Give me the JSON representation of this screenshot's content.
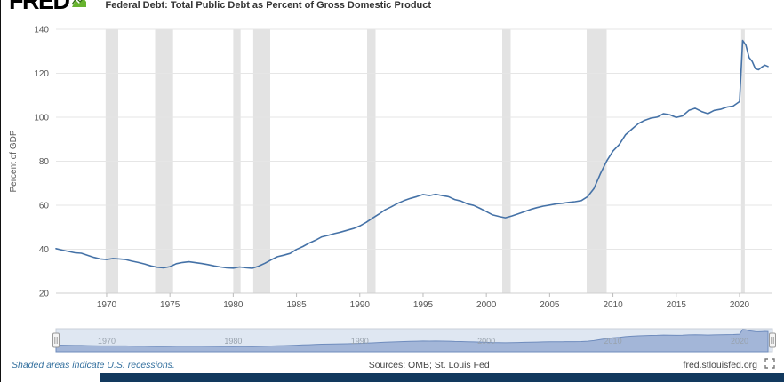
{
  "header": {
    "logo": "FRED",
    "title": "Federal Debt: Total Public Debt as Percent of Gross Domestic Product"
  },
  "footer": {
    "recession_note": "Shaded areas indicate U.S. recessions.",
    "sources": "Sources: OMB; St. Louis Fed",
    "site": "fred.stlouisfed.org"
  },
  "colors": {
    "line": "#4572a7",
    "recession": "#e3e3e3",
    "navigator_bg": "#dfe7f2",
    "navigator_fill": "#8fa6cf",
    "navigator_stroke": "#6f8cbd",
    "logo_green": "#67b32e",
    "bottom_bar": "#12395e"
  },
  "chart_data": {
    "type": "line",
    "title": "Federal Debt: Total Public Debt as Percent of Gross Domestic Product",
    "xlabel": "",
    "ylabel": "Percent of GDP",
    "ylim": [
      20,
      140
    ],
    "yticks": [
      20,
      40,
      60,
      80,
      100,
      120,
      140
    ],
    "xlim": [
      1966,
      2022.6
    ],
    "xticks": [
      1970,
      1975,
      1980,
      1985,
      1990,
      1995,
      2000,
      2005,
      2010,
      2015,
      2020
    ],
    "grid": "horizontal",
    "legend": "none",
    "navigator_ylim": [
      0,
      140
    ],
    "navigator_labels": [
      1970,
      1980,
      1990,
      2000,
      2010,
      2020
    ],
    "recessions": [
      [
        1969.92,
        1970.92
      ],
      [
        1973.83,
        1975.25
      ],
      [
        1980.0,
        1980.58
      ],
      [
        1981.58,
        1982.92
      ],
      [
        1990.58,
        1991.25
      ],
      [
        2001.25,
        2001.92
      ],
      [
        2007.92,
        2009.5
      ],
      [
        2020.13,
        2020.42
      ]
    ],
    "series": [
      {
        "name": "Federal Debt: Total Public Debt as Percent of Gross Domestic Product",
        "units": "Percent of GDP",
        "points": [
          [
            1966,
            40.3
          ],
          [
            1966.5,
            39.6
          ],
          [
            1967,
            39.0
          ],
          [
            1967.5,
            38.4
          ],
          [
            1968,
            38.2
          ],
          [
            1968.5,
            37.2
          ],
          [
            1969,
            36.3
          ],
          [
            1969.5,
            35.6
          ],
          [
            1970,
            35.3
          ],
          [
            1970.5,
            35.8
          ],
          [
            1971,
            35.6
          ],
          [
            1971.5,
            35.3
          ],
          [
            1972,
            34.6
          ],
          [
            1972.5,
            34.0
          ],
          [
            1973,
            33.3
          ],
          [
            1973.5,
            32.4
          ],
          [
            1974,
            31.8
          ],
          [
            1974.5,
            31.5
          ],
          [
            1975,
            32.1
          ],
          [
            1975.5,
            33.4
          ],
          [
            1976,
            34.0
          ],
          [
            1976.5,
            34.3
          ],
          [
            1977,
            33.9
          ],
          [
            1977.5,
            33.5
          ],
          [
            1978,
            33.0
          ],
          [
            1978.5,
            32.4
          ],
          [
            1979,
            31.9
          ],
          [
            1979.5,
            31.5
          ],
          [
            1980,
            31.4
          ],
          [
            1980.5,
            31.9
          ],
          [
            1981,
            31.6
          ],
          [
            1981.5,
            31.3
          ],
          [
            1982,
            32.3
          ],
          [
            1982.5,
            33.6
          ],
          [
            1983,
            35.2
          ],
          [
            1983.5,
            36.6
          ],
          [
            1984,
            37.3
          ],
          [
            1984.5,
            38.1
          ],
          [
            1985,
            39.9
          ],
          [
            1985.5,
            41.2
          ],
          [
            1986,
            42.8
          ],
          [
            1986.5,
            44.1
          ],
          [
            1987,
            45.6
          ],
          [
            1987.5,
            46.3
          ],
          [
            1988,
            47.1
          ],
          [
            1988.5,
            47.8
          ],
          [
            1989,
            48.6
          ],
          [
            1989.5,
            49.4
          ],
          [
            1990,
            50.6
          ],
          [
            1990.5,
            52.2
          ],
          [
            1991,
            54.1
          ],
          [
            1991.5,
            55.9
          ],
          [
            1992,
            57.9
          ],
          [
            1992.5,
            59.3
          ],
          [
            1993,
            60.9
          ],
          [
            1993.5,
            62.1
          ],
          [
            1994,
            63.1
          ],
          [
            1994.5,
            63.9
          ],
          [
            1995,
            64.9
          ],
          [
            1995.5,
            64.4
          ],
          [
            1996,
            65.0
          ],
          [
            1996.5,
            64.4
          ],
          [
            1997,
            63.9
          ],
          [
            1997.5,
            62.6
          ],
          [
            1998,
            61.9
          ],
          [
            1998.5,
            60.6
          ],
          [
            1999,
            59.9
          ],
          [
            1999.5,
            58.6
          ],
          [
            2000,
            57.1
          ],
          [
            2000.5,
            55.6
          ],
          [
            2001,
            54.9
          ],
          [
            2001.5,
            54.3
          ],
          [
            2002,
            55.1
          ],
          [
            2002.5,
            56.1
          ],
          [
            2003,
            57.1
          ],
          [
            2003.5,
            58.1
          ],
          [
            2004,
            58.9
          ],
          [
            2004.5,
            59.6
          ],
          [
            2005,
            60.1
          ],
          [
            2005.5,
            60.6
          ],
          [
            2006,
            60.9
          ],
          [
            2006.5,
            61.3
          ],
          [
            2007,
            61.6
          ],
          [
            2007.5,
            62.1
          ],
          [
            2008,
            63.9
          ],
          [
            2008.5,
            67.6
          ],
          [
            2009,
            74.2
          ],
          [
            2009.5,
            80.1
          ],
          [
            2010,
            84.6
          ],
          [
            2010.5,
            87.6
          ],
          [
            2011,
            92.1
          ],
          [
            2011.5,
            94.6
          ],
          [
            2012,
            97.1
          ],
          [
            2012.5,
            98.6
          ],
          [
            2013,
            99.6
          ],
          [
            2013.5,
            100.1
          ],
          [
            2014,
            101.6
          ],
          [
            2014.5,
            101.1
          ],
          [
            2015,
            99.9
          ],
          [
            2015.5,
            100.6
          ],
          [
            2016,
            103.1
          ],
          [
            2016.5,
            104.1
          ],
          [
            2017,
            102.6
          ],
          [
            2017.5,
            101.6
          ],
          [
            2018,
            103.1
          ],
          [
            2018.5,
            103.6
          ],
          [
            2019,
            104.6
          ],
          [
            2019.5,
            105.1
          ],
          [
            2020,
            107.1
          ],
          [
            2020.25,
            134.9
          ],
          [
            2020.5,
            132.8
          ],
          [
            2020.75,
            127.2
          ],
          [
            2021,
            125.4
          ],
          [
            2021.25,
            122.1
          ],
          [
            2021.5,
            121.6
          ],
          [
            2021.75,
            122.8
          ],
          [
            2022,
            123.7
          ],
          [
            2022.25,
            123.1
          ]
        ]
      }
    ]
  }
}
